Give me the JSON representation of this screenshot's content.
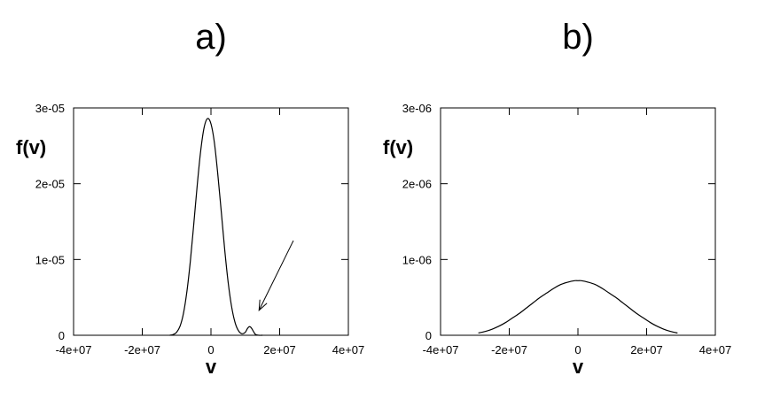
{
  "chart_data": [
    {
      "type": "line",
      "title": "a)",
      "xlabel": "v",
      "ylabel": "f(v)",
      "xlim": [
        -40000000,
        40000000
      ],
      "ylim": [
        0,
        3e-05
      ],
      "xticks": [
        -40000000,
        -20000000,
        0,
        20000000,
        40000000
      ],
      "xtick_labels": [
        "-4e+07",
        "-2e+07",
        "0",
        "2e+07",
        "4e+07"
      ],
      "yticks": [
        0,
        1e-05,
        2e-05,
        3e-05
      ],
      "ytick_labels": [
        "0",
        "1e-05",
        "2e-05",
        "3e-05"
      ],
      "grid": false,
      "series": [
        {
          "x": [
            -12000000,
            -11000000,
            -10000000,
            -9000000,
            -8000000,
            -7000000,
            -6000000,
            -5000000,
            -4000000,
            -3000000,
            -2000000,
            -1000000,
            0,
            1000000,
            2000000,
            3000000,
            4000000,
            5000000,
            6000000,
            7000000,
            8000000,
            9000000,
            10000000,
            10500000,
            11000000,
            11500000,
            12000000,
            12500000,
            13000000,
            14000000,
            15000000
          ],
          "values": [
            0,
            1e-07,
            4e-07,
            1.2e-06,
            2.9e-06,
            5.8e-06,
            9.8e-06,
            1.47e-05,
            1.98e-05,
            2.43e-05,
            2.74e-05,
            2.86e-05,
            2.79e-05,
            2.54e-05,
            2.12e-05,
            1.63e-05,
            1.13e-05,
            7e-06,
            3.8e-06,
            1.7e-06,
            6e-07,
            2e-07,
            4e-07,
            8e-07,
            1.1e-06,
            1.1e-06,
            8e-07,
            4e-07,
            1e-07,
            0,
            0
          ]
        }
      ],
      "annotations": [
        {
          "type": "arrow",
          "from": [
            24000000,
            1.25e-05
          ],
          "to": [
            14000000,
            3.3e-06
          ]
        }
      ]
    },
    {
      "type": "line",
      "title": "b)",
      "xlabel": "v",
      "ylabel": "f(v)",
      "xlim": [
        -40000000,
        40000000
      ],
      "ylim": [
        0,
        3e-06
      ],
      "xticks": [
        -40000000,
        -20000000,
        0,
        20000000,
        40000000
      ],
      "xtick_labels": [
        "-4e+07",
        "-2e+07",
        "0",
        "2e+07",
        "4e+07"
      ],
      "yticks": [
        0,
        1e-06,
        2e-06,
        3e-06
      ],
      "ytick_labels": [
        "0",
        "1e-06",
        "2e-06",
        "3e-06"
      ],
      "grid": false,
      "series": [
        {
          "x": [
            -29000000,
            -27000000,
            -25000000,
            -23000000,
            -21000000,
            -19000000,
            -17000000,
            -15000000,
            -13000000,
            -11000000,
            -9000000,
            -7000000,
            -5000000,
            -3000000,
            -1000000,
            0,
            1000000,
            3000000,
            5000000,
            7000000,
            9000000,
            11000000,
            13000000,
            15000000,
            17000000,
            19000000,
            21000000,
            23000000,
            25000000,
            27000000,
            29000000
          ],
          "values": [
            3e-08,
            5e-08,
            8e-08,
            1.2e-07,
            1.7e-07,
            2.3e-07,
            2.9e-07,
            3.6e-07,
            4.3e-07,
            5e-07,
            5.6e-07,
            6.2e-07,
            6.7e-07,
            7e-07,
            7.2e-07,
            7.2e-07,
            7.2e-07,
            7e-07,
            6.7e-07,
            6.2e-07,
            5.6e-07,
            5e-07,
            4.3e-07,
            3.6e-07,
            2.9e-07,
            2.3e-07,
            1.7e-07,
            1.2e-07,
            8e-08,
            5e-08,
            3e-08
          ]
        }
      ],
      "annotations": []
    }
  ]
}
